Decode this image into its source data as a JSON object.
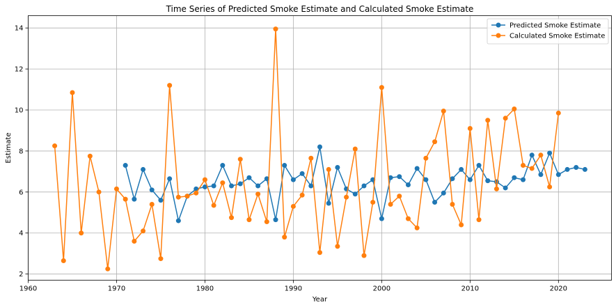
{
  "chart_data": {
    "type": "line",
    "title": "Time Series of Predicted Smoke Estimate and Calculated Smoke Estimate",
    "xlabel": "Year",
    "ylabel": "Estimate",
    "xlim": [
      1960,
      2026
    ],
    "ylim": [
      1.7,
      14.6
    ],
    "xticks": [
      1960,
      1970,
      1980,
      1990,
      2000,
      2010,
      2020
    ],
    "yticks": [
      2,
      4,
      6,
      8,
      10,
      12,
      14
    ],
    "grid": true,
    "legend_position": "top-right",
    "series": [
      {
        "name": "Predicted Smoke Estimate",
        "color": "#1f77b4",
        "marker": "circle",
        "x": [
          1971,
          1972,
          1973,
          1974,
          1975,
          1976,
          1977,
          1978,
          1979,
          1980,
          1981,
          1982,
          1983,
          1984,
          1985,
          1986,
          1987,
          1988,
          1989,
          1990,
          1991,
          1992,
          1993,
          1994,
          1995,
          1996,
          1997,
          1998,
          1999,
          2000,
          2001,
          2002,
          2003,
          2004,
          2005,
          2006,
          2007,
          2008,
          2009,
          2010,
          2011,
          2012,
          2013,
          2014,
          2015,
          2016,
          2017,
          2018,
          2019,
          2020,
          2021,
          2022,
          2023
        ],
        "y": [
          7.3,
          5.65,
          7.1,
          6.1,
          5.6,
          6.65,
          4.6,
          5.8,
          6.15,
          6.25,
          6.3,
          7.3,
          6.3,
          6.4,
          6.7,
          6.3,
          6.65,
          4.65,
          7.3,
          6.6,
          6.9,
          6.3,
          8.2,
          5.45,
          7.2,
          6.15,
          5.9,
          6.3,
          6.6,
          4.7,
          6.7,
          6.75,
          6.35,
          7.15,
          6.6,
          5.5,
          5.95,
          6.65,
          7.1,
          6.6,
          7.3,
          6.55,
          6.5,
          6.2,
          6.7,
          6.6,
          7.8,
          6.85,
          7.9,
          6.85,
          7.1,
          7.2,
          7.1
        ]
      },
      {
        "name": "Calculated Smoke Estimate",
        "color": "#ff7f0e",
        "marker": "circle",
        "x": [
          1963,
          1964,
          1965,
          1966,
          1967,
          1968,
          1969,
          1970,
          1971,
          1972,
          1973,
          1974,
          1975,
          1976,
          1977,
          1978,
          1979,
          1980,
          1981,
          1982,
          1983,
          1984,
          1985,
          1986,
          1987,
          1988,
          1989,
          1990,
          1991,
          1992,
          1993,
          1994,
          1995,
          1996,
          1997,
          1998,
          1999,
          2000,
          2001,
          2002,
          2003,
          2004,
          2005,
          2006,
          2007,
          2008,
          2009,
          2010,
          2011,
          2012,
          2013,
          2014,
          2015,
          2016,
          2017,
          2018,
          2019,
          2020
        ],
        "y": [
          8.25,
          2.65,
          10.85,
          4.0,
          7.75,
          6.0,
          2.25,
          6.15,
          5.65,
          3.6,
          4.1,
          5.4,
          2.75,
          11.2,
          5.75,
          5.8,
          5.95,
          6.6,
          5.35,
          6.45,
          4.75,
          7.6,
          4.65,
          5.9,
          4.55,
          13.95,
          3.8,
          5.3,
          5.85,
          7.65,
          3.05,
          7.1,
          3.35,
          5.75,
          8.1,
          2.9,
          5.5,
          11.1,
          5.4,
          5.8,
          4.7,
          4.25,
          7.65,
          8.45,
          9.95,
          5.4,
          4.4,
          9.1,
          4.65,
          9.5,
          6.15,
          9.6,
          10.05,
          7.3,
          7.15,
          7.8,
          6.25,
          9.85
        ]
      }
    ]
  }
}
